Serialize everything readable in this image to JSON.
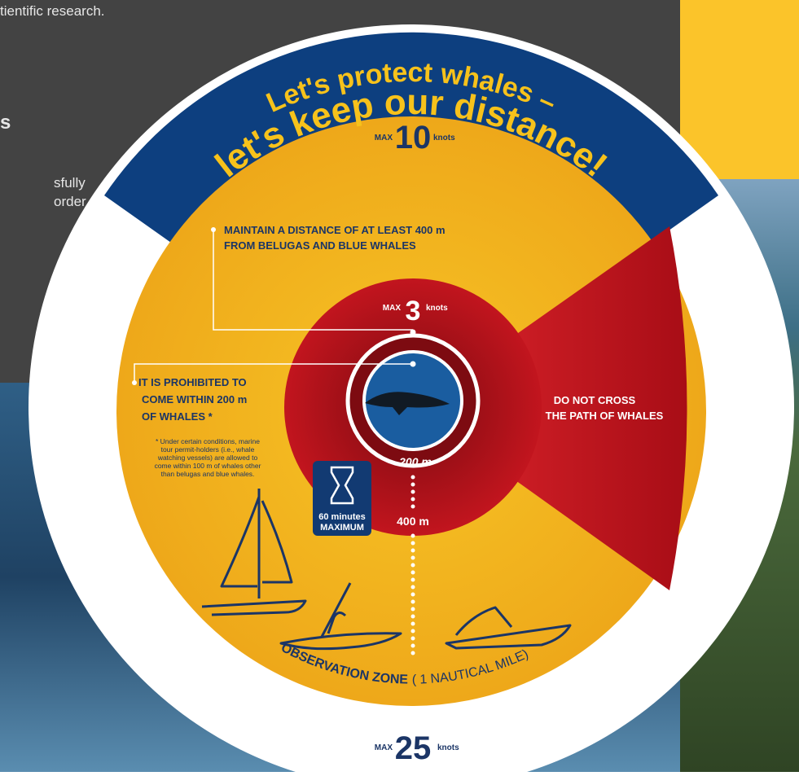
{
  "page_text": {
    "intro_fragment": "tientific research.",
    "heading_fragment": "s",
    "body_fragment": [
      "sfully",
      "order"
    ]
  },
  "infographic": {
    "title": [
      "Let's protect whales –",
      "let's keep our distance!"
    ],
    "speed_outer": {
      "label": "MAX",
      "value": 10,
      "unit": "knots"
    },
    "speed_inner": {
      "label": "MAX",
      "value": 3,
      "unit": "knots"
    },
    "speed_zone": {
      "label": "MAX",
      "value": 25,
      "unit": "knots"
    },
    "rule_400": [
      "MAINTAIN A DISTANCE OF AT LEAST 400 m",
      "FROM BELUGAS AND BLUE WHALES"
    ],
    "rule_200": [
      "IT IS PROHIBITED TO",
      "COME WITHIN 200 m",
      "OF WHALES *"
    ],
    "footnote": [
      "* Under certain conditions, marine",
      "tour permit-holders (i.e., whale",
      "watching vessels) are allowed to",
      "come within 100 m of whales other",
      "than belugas and blue whales."
    ],
    "rule_path": [
      "DO NOT CROSS",
      "THE PATH OF WHALES"
    ],
    "distance_200": "200 m",
    "distance_400": "400 m",
    "time_limit": [
      "60 minutes",
      "MAXIMUM"
    ],
    "zone": [
      "OBSERVATION ZONE",
      "( 1 NAUTICAL MILE)"
    ]
  }
}
